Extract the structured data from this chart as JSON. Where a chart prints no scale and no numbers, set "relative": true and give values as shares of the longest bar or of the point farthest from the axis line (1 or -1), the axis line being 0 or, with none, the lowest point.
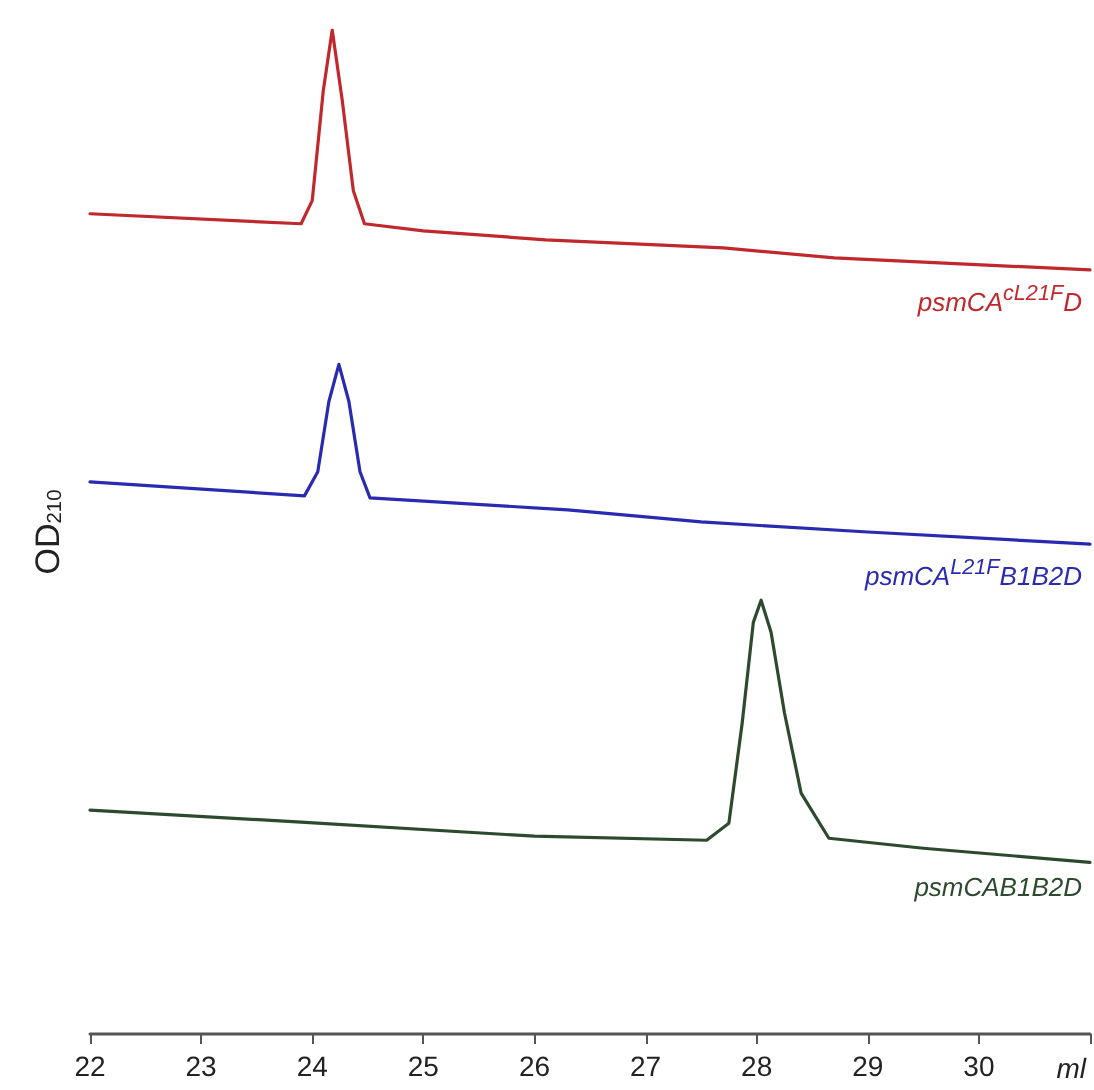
{
  "chart_data": {
    "type": "line",
    "relative": true,
    "xlabel": "ml",
    "ylabel": "OD$_{210}$",
    "xlim": [
      22,
      31
    ],
    "xticks": [
      22,
      23,
      24,
      25,
      26,
      27,
      28,
      29,
      30,
      {
        "value": 31,
        "label": null
      }
    ],
    "grid": false,
    "legend": false,
    "marker": "none",
    "line_style": "solid",
    "series": [
      {
        "name": "psmCA$^{cL21F}$D",
        "color": "#c0282d",
        "x": [
          22,
          23.9,
          24.0,
          24.1,
          24.18,
          24.27,
          24.37,
          24.47,
          25,
          26.1,
          27.7,
          28.7,
          31
        ],
        "values": [
          0.817,
          0.807,
          0.83,
          0.94,
          1.0,
          0.93,
          0.84,
          0.807,
          0.8,
          0.791,
          0.783,
          0.773,
          0.761
        ]
      },
      {
        "name": "psmCA$^{L21F}$B1B2D",
        "color": "#2a2ab0",
        "x": [
          22,
          23.93,
          24.05,
          24.15,
          24.24,
          24.33,
          24.43,
          24.52,
          26.3,
          27.5,
          29,
          31
        ],
        "values": [
          0.55,
          0.536,
          0.56,
          0.63,
          0.667,
          0.63,
          0.56,
          0.534,
          0.522,
          0.51,
          0.5,
          0.488
        ]
      },
      {
        "name": "psmCAB1B2D",
        "color": "#2e4a2e",
        "x": [
          22,
          23.9,
          26,
          27.55,
          27.75,
          27.87,
          27.97,
          28.04,
          28.13,
          28.25,
          28.4,
          28.65,
          29.5,
          31
        ],
        "values": [
          0.223,
          0.211,
          0.197,
          0.193,
          0.21,
          0.31,
          0.41,
          0.432,
          0.4,
          0.32,
          0.24,
          0.195,
          0.185,
          0.171
        ]
      }
    ]
  }
}
